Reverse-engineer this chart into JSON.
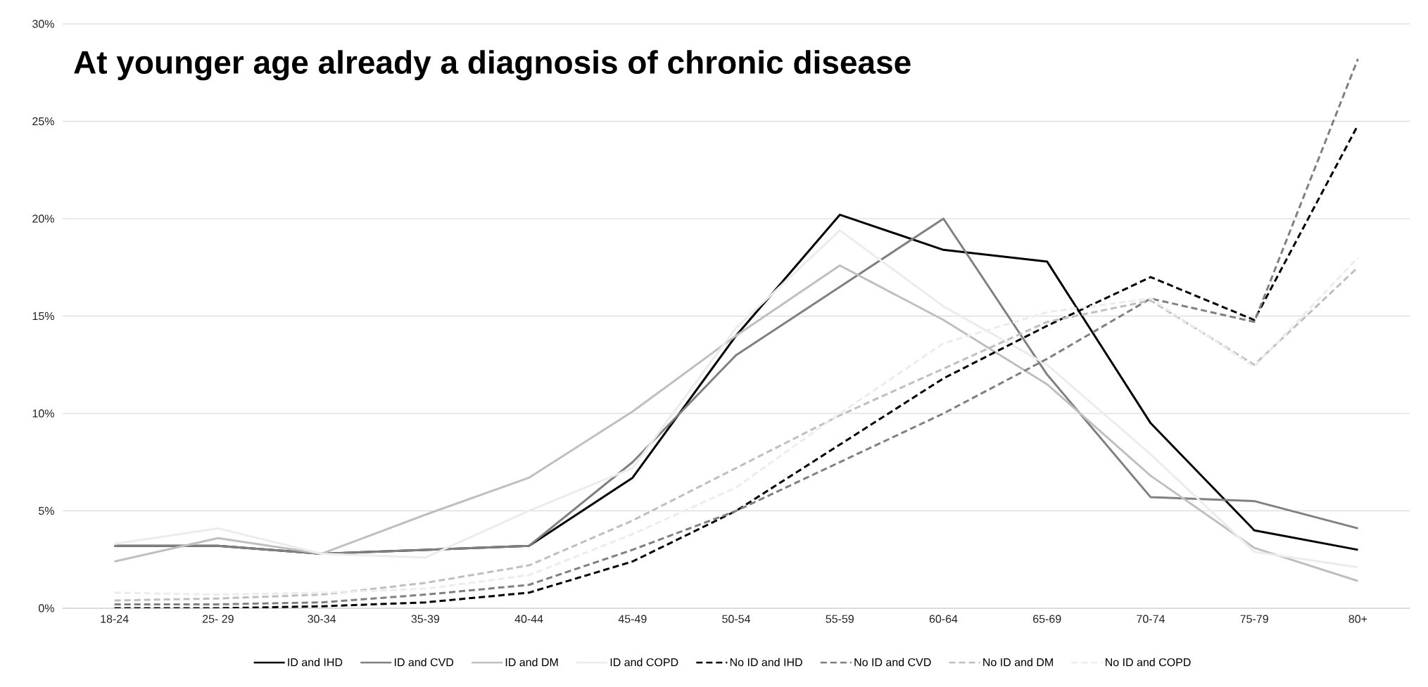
{
  "chart_data": {
    "type": "line",
    "title": "At younger age already a diagnosis of chronic disease",
    "categories": [
      "18-24",
      "25- 29",
      "30-34",
      "35-39",
      "40-44",
      "45-49",
      "50-54",
      "55-59",
      "60-64",
      "65-69",
      "70-74",
      "75-79",
      "80+"
    ],
    "ylim": [
      0,
      30
    ],
    "yticks": [
      {
        "value": 0,
        "label": "0%"
      },
      {
        "value": 5,
        "label": "5%"
      },
      {
        "value": 10,
        "label": "10%"
      },
      {
        "value": 15,
        "label": "15%"
      },
      {
        "value": 20,
        "label": "20%"
      },
      {
        "value": 25,
        "label": "25%"
      },
      {
        "value": 30,
        "label": "30%"
      }
    ],
    "grid": "y",
    "legend": "bottom",
    "series": [
      {
        "name": "ID and IHD",
        "color": "#000000",
        "line_style": "solid",
        "values": [
          3.2,
          3.2,
          2.8,
          3.0,
          3.2,
          6.7,
          14.0,
          20.2,
          18.4,
          17.8,
          9.5,
          4.0,
          3.0
        ]
      },
      {
        "name": "ID and CVD",
        "color": "#808080",
        "line_style": "solid",
        "values": [
          3.2,
          3.2,
          2.8,
          3.0,
          3.2,
          7.5,
          13.0,
          16.5,
          20.0,
          12.0,
          5.7,
          5.5,
          4.1
        ]
      },
      {
        "name": "ID and DM",
        "color": "#bfbfbf",
        "line_style": "solid",
        "values": [
          2.4,
          3.6,
          2.8,
          4.8,
          6.7,
          10.1,
          14.0,
          17.6,
          14.8,
          11.5,
          6.8,
          3.1,
          1.4
        ]
      },
      {
        "name": "ID and COPD",
        "color": "#ececec",
        "line_style": "solid",
        "values": [
          3.3,
          4.1,
          2.8,
          2.6,
          5.0,
          7.2,
          14.4,
          19.4,
          15.5,
          12.5,
          7.9,
          2.9,
          2.1
        ]
      },
      {
        "name": "No ID and IHD",
        "color": "#000000",
        "line_style": "dashed",
        "values": [
          0.0,
          0.0,
          0.1,
          0.3,
          0.8,
          2.4,
          5.0,
          8.4,
          11.8,
          14.5,
          17.0,
          14.8,
          24.8
        ]
      },
      {
        "name": "No ID and CVD",
        "color": "#808080",
        "line_style": "dashed",
        "values": [
          0.2,
          0.2,
          0.3,
          0.7,
          1.2,
          3.0,
          5.0,
          7.5,
          10.0,
          12.8,
          15.9,
          14.7,
          28.2
        ]
      },
      {
        "name": "No ID and DM",
        "color": "#bfbfbf",
        "line_style": "dashed",
        "values": [
          0.4,
          0.5,
          0.7,
          1.3,
          2.2,
          4.5,
          7.2,
          9.9,
          12.3,
          14.7,
          15.8,
          12.5,
          17.5
        ]
      },
      {
        "name": "No ID and COPD",
        "color": "#ececec",
        "line_style": "dashed",
        "values": [
          0.8,
          0.7,
          0.8,
          1.0,
          1.7,
          3.8,
          6.2,
          10.0,
          13.6,
          15.2,
          15.9,
          12.4,
          18.0
        ]
      }
    ]
  }
}
